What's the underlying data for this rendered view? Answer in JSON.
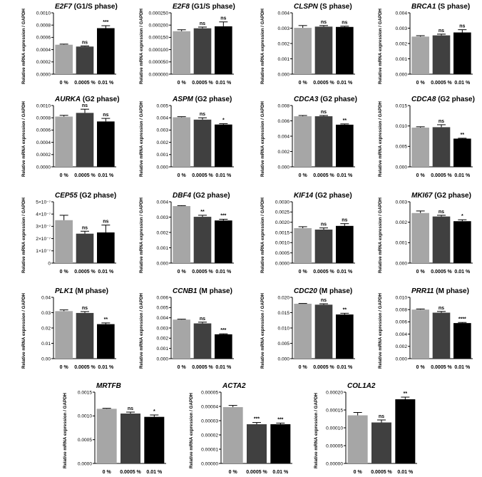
{
  "chart_data": [
    {
      "type": "bar",
      "gene": "E2F7",
      "phase": " (G1/S phase)",
      "categories": [
        "0 %",
        "0.0005 %",
        "0.01 %"
      ],
      "values": [
        0.00048,
        0.00045,
        0.00075
      ],
      "errors": [
        1e-05,
        1e-05,
        4e-05
      ],
      "significance": [
        "",
        "ns",
        "***"
      ],
      "ylabel": "Relative mRNA expression / GAPDH",
      "ylim": [
        0,
        0.001
      ],
      "yticks": [
        0,
        0.0002,
        0.0004,
        0.0006,
        0.0008,
        0.001
      ],
      "yticklabels": [
        "0.0000",
        "0.0002",
        "0.0004",
        "0.0006",
        "0.0008",
        "0.0010"
      ],
      "colors": [
        "#a6a6a6",
        "#404040",
        "#000000"
      ]
    },
    {
      "type": "bar",
      "gene": "E2F8",
      "phase": " (G1/S phase)",
      "categories": [
        "0 %",
        "0.0005 %",
        "0.01 %"
      ],
      "values": [
        0.000175,
        0.000187,
        0.000195
      ],
      "errors": [
        6e-06,
        5e-06,
        1.8e-05
      ],
      "significance": [
        "",
        "ns",
        "ns"
      ],
      "ylabel": "Relative mRNA expression / GAPDH",
      "ylim": [
        0,
        0.00025
      ],
      "yticks": [
        0,
        5e-05,
        0.0001,
        0.00015,
        0.0002,
        0.00025
      ],
      "yticklabels": [
        "0.000000",
        "0.000050",
        "0.000100",
        "0.000150",
        "0.000200",
        "0.000250"
      ],
      "colors": [
        "#a6a6a6",
        "#404040",
        "#000000"
      ]
    },
    {
      "type": "bar",
      "gene": "CLSPN",
      "phase": " (S phase)",
      "categories": [
        "0 %",
        "0.0005 %",
        "0.01 %"
      ],
      "values": [
        0.00302,
        0.0031,
        0.00308
      ],
      "errors": [
        0.00015,
        7e-05,
        5e-05
      ],
      "significance": [
        "",
        "ns",
        "ns"
      ],
      "ylabel": "Relative mRNA expression / GAPDH",
      "ylim": [
        0,
        0.004
      ],
      "yticks": [
        0,
        0.001,
        0.002,
        0.003,
        0.004
      ],
      "yticklabels": [
        "0.000",
        "0.001",
        "0.002",
        "0.003",
        "0.004"
      ],
      "colors": [
        "#a6a6a6",
        "#404040",
        "#000000"
      ]
    },
    {
      "type": "bar",
      "gene": "BRCA1",
      "phase": " (S phase)",
      "categories": [
        "0 %",
        "0.0005 %",
        "0.01 %"
      ],
      "values": [
        0.00245,
        0.00253,
        0.00272
      ],
      "errors": [
        6e-05,
        8e-05,
        0.00018
      ],
      "significance": [
        "",
        "ns",
        "ns"
      ],
      "ylabel": "Relative mRNA expression / GAPDH",
      "ylim": [
        0,
        0.004
      ],
      "yticks": [
        0,
        0.001,
        0.002,
        0.003,
        0.004
      ],
      "yticklabels": [
        "0.000",
        "0.001",
        "0.002",
        "0.003",
        "0.004"
      ],
      "colors": [
        "#a6a6a6",
        "#404040",
        "#000000"
      ]
    },
    {
      "type": "bar",
      "gene": "AURKA",
      "phase": " (G2 phase)",
      "categories": [
        "0 %",
        "0.0005 %",
        "0.01 %"
      ],
      "values": [
        0.00082,
        0.00088,
        0.00074
      ],
      "errors": [
        2e-05,
        6e-05,
        5e-05
      ],
      "significance": [
        "",
        "ns",
        "ns"
      ],
      "ylabel": "Relative mRNA expression / GAPDH",
      "ylim": [
        0,
        0.001
      ],
      "yticks": [
        0,
        0.0002,
        0.0004,
        0.0006,
        0.0008,
        0.001
      ],
      "yticklabels": [
        "0.0000",
        "0.0002",
        "0.0004",
        "0.0006",
        "0.0008",
        "0.0010"
      ],
      "colors": [
        "#a6a6a6",
        "#404040",
        "#000000"
      ]
    },
    {
      "type": "bar",
      "gene": "ASPM",
      "phase": " (G2 phase)",
      "categories": [
        "0 %",
        "0.0005 %",
        "0.01 %"
      ],
      "values": [
        0.00404,
        0.00385,
        0.00345
      ],
      "errors": [
        5e-05,
        0.00015,
        7e-05
      ],
      "significance": [
        "",
        "ns",
        "*"
      ],
      "ylabel": "Relative mRNA expression / GAPDH",
      "ylim": [
        0,
        0.005
      ],
      "yticks": [
        0,
        0.001,
        0.002,
        0.003,
        0.004,
        0.005
      ],
      "yticklabels": [
        "0.000",
        "0.001",
        "0.002",
        "0.003",
        "0.004",
        "0.005"
      ],
      "colors": [
        "#a6a6a6",
        "#404040",
        "#000000"
      ]
    },
    {
      "type": "bar",
      "gene": "CDCA3",
      "phase": " (G2 phase)",
      "categories": [
        "0 %",
        "0.0005 %",
        "0.01 %"
      ],
      "values": [
        0.0066,
        0.0066,
        0.0055
      ],
      "errors": [
        0.0001,
        0.0001,
        0.0001
      ],
      "significance": [
        "",
        "ns",
        "**"
      ],
      "ylabel": "Relative mRNA expression / GAPDH",
      "ylim": [
        0,
        0.008
      ],
      "yticks": [
        0,
        0.002,
        0.004,
        0.006,
        0.008
      ],
      "yticklabels": [
        "0.000",
        "0.002",
        "0.004",
        "0.006",
        "0.008"
      ],
      "colors": [
        "#a6a6a6",
        "#404040",
        "#000000"
      ]
    },
    {
      "type": "bar",
      "gene": "CDCA8",
      "phase": " (G2 phase)",
      "categories": [
        "0 %",
        "0.0005 %",
        "0.01 %"
      ],
      "values": [
        0.0096,
        0.0097,
        0.0069
      ],
      "errors": [
        0.0002,
        0.0006,
        0.0001
      ],
      "significance": [
        "",
        "ns",
        "**"
      ],
      "ylabel": "Relative mRNA expression / GAPDH",
      "ylim": [
        0,
        0.015
      ],
      "yticks": [
        0,
        0.005,
        0.01,
        0.015
      ],
      "yticklabels": [
        "0.000",
        "0.005",
        "0.010",
        "0.015"
      ],
      "colors": [
        "#a6a6a6",
        "#404040",
        "#000000"
      ]
    },
    {
      "type": "bar",
      "gene": "CEP55",
      "phase": " (G2 phase)",
      "categories": [
        "0 %",
        "0.0005 %",
        "0.01 %"
      ],
      "values": [
        3.5e-07,
        2.4e-07,
        2.5e-07
      ],
      "errors": [
        4e-08,
        2e-08,
        6e-08
      ],
      "significance": [
        "",
        "ns",
        "ns"
      ],
      "ylabel": "Relative mRNA expression / GAPDH",
      "ylim": [
        0,
        5e-07
      ],
      "yticks": [
        0,
        1e-07,
        2e-07,
        3e-07,
        4e-07,
        5e-07
      ],
      "yticklabels": [
        "0",
        "1×10⁻⁷",
        "2×10⁻⁷",
        "3×10⁻⁷",
        "4×10⁻⁷",
        "5×10⁻⁷"
      ],
      "colors": [
        "#a6a6a6",
        "#404040",
        "#000000"
      ]
    },
    {
      "type": "bar",
      "gene": "DBF4",
      "phase": " (G2 phase)",
      "categories": [
        "0 %",
        "0.0005 %",
        "0.01 %"
      ],
      "values": [
        0.00372,
        0.00302,
        0.00278
      ],
      "errors": [
        3e-05,
        0.0001,
        8e-05
      ],
      "significance": [
        "",
        "**",
        "***"
      ],
      "ylabel": "Relative mRNA expression / GAPDH",
      "ylim": [
        0,
        0.004
      ],
      "yticks": [
        0,
        0.001,
        0.002,
        0.003,
        0.004
      ],
      "yticklabels": [
        "0.000",
        "0.001",
        "0.002",
        "0.003",
        "0.004"
      ],
      "colors": [
        "#a6a6a6",
        "#404040",
        "#000000"
      ]
    },
    {
      "type": "bar",
      "gene": "KIF14",
      "phase": " (G2 phase)",
      "categories": [
        "0 %",
        "0.0005 %",
        "0.01 %"
      ],
      "values": [
        0.00171,
        0.00164,
        0.00182
      ],
      "errors": [
        7e-05,
        8e-05,
        0.00011
      ],
      "significance": [
        "",
        "ns",
        "ns"
      ],
      "ylabel": "Relative mRNA expression / GAPDH",
      "ylim": [
        0,
        0.003
      ],
      "yticks": [
        0,
        0.0005,
        0.001,
        0.0015,
        0.002,
        0.0025,
        0.003
      ],
      "yticklabels": [
        "0.0000",
        "0.0005",
        "0.0010",
        "0.0015",
        "0.0020",
        "0.0025",
        "0.0030"
      ],
      "colors": [
        "#a6a6a6",
        "#404040",
        "#000000"
      ]
    },
    {
      "type": "bar",
      "gene": "MKI67",
      "phase": " (G2 phase)",
      "categories": [
        "0 %",
        "0.0005 %",
        "0.01 %"
      ],
      "values": [
        0.00245,
        0.00228,
        0.00205
      ],
      "errors": [
        0.0001,
        6e-05,
        7e-05
      ],
      "significance": [
        "",
        "ns",
        "*"
      ],
      "ylabel": "Relative mRNA expression / GAPDH",
      "ylim": [
        0,
        0.003
      ],
      "yticks": [
        0,
        0.001,
        0.002,
        0.003
      ],
      "yticklabels": [
        "0.000",
        "0.001",
        "0.002",
        "0.003"
      ],
      "colors": [
        "#a6a6a6",
        "#404040",
        "#000000"
      ]
    },
    {
      "type": "bar",
      "gene": "PLK1",
      "phase": " (M phase)",
      "categories": [
        "0 %",
        "0.0005 %",
        "0.01 %"
      ],
      "values": [
        0.031,
        0.0298,
        0.0225
      ],
      "errors": [
        0.0008,
        0.0009,
        0.0008
      ],
      "significance": [
        "",
        "ns",
        "**"
      ],
      "ylabel": "Relative mRNA expression / GAPDH",
      "ylim": [
        0,
        0.04
      ],
      "yticks": [
        0,
        0.01,
        0.02,
        0.03,
        0.04
      ],
      "yticklabels": [
        "0.00",
        "0.01",
        "0.02",
        "0.03",
        "0.04"
      ],
      "colors": [
        "#a6a6a6",
        "#404040",
        "#000000"
      ]
    },
    {
      "type": "bar",
      "gene": "CCNB1",
      "phase": " (M phase)",
      "categories": [
        "0 %",
        "0.0005 %",
        "0.01 %"
      ],
      "values": [
        0.00382,
        0.00345,
        0.00238
      ],
      "errors": [
        4e-05,
        0.00012,
        5e-05
      ],
      "significance": [
        "",
        "ns",
        "***"
      ],
      "ylabel": "Relative mRNA expression / GAPDH",
      "ylim": [
        0,
        0.006
      ],
      "yticks": [
        0,
        0.001,
        0.002,
        0.003,
        0.004,
        0.005,
        0.006
      ],
      "yticklabels": [
        "0.000",
        "0.001",
        "0.002",
        "0.003",
        "0.004",
        "0.005",
        "0.006"
      ],
      "colors": [
        "#a6a6a6",
        "#404040",
        "#000000"
      ]
    },
    {
      "type": "bar",
      "gene": "CDC20",
      "phase": " (M phase)",
      "categories": [
        "0 %",
        "0.0005 %",
        "0.01 %"
      ],
      "values": [
        0.0179,
        0.0176,
        0.0144
      ],
      "errors": [
        0.0001,
        0.0003,
        0.0004
      ],
      "significance": [
        "",
        "ns",
        "**"
      ],
      "ylabel": "Relative mRNA expression / GAPDH",
      "ylim": [
        0,
        0.02
      ],
      "yticks": [
        0,
        0.005,
        0.01,
        0.015,
        0.02
      ],
      "yticklabels": [
        "0.000",
        "0.005",
        "0.010",
        "0.015",
        "0.020"
      ],
      "colors": [
        "#a6a6a6",
        "#404040",
        "#000000"
      ]
    },
    {
      "type": "bar",
      "gene": "PRR11",
      "phase": " (M phase)",
      "categories": [
        "0 %",
        "0.0005 %",
        "0.01 %"
      ],
      "values": [
        0.008,
        0.0075,
        0.0058
      ],
      "errors": [
        0.0001,
        0.0002,
        0.0001
      ],
      "significance": [
        "",
        "ns",
        "****"
      ],
      "ylabel": "Relative mRNA expression / GAPDH",
      "ylim": [
        0,
        0.01
      ],
      "yticks": [
        0,
        0.002,
        0.004,
        0.006,
        0.008,
        0.01
      ],
      "yticklabels": [
        "0.000",
        "0.002",
        "0.004",
        "0.006",
        "0.008",
        "0.010"
      ],
      "colors": [
        "#a6a6a6",
        "#404040",
        "#000000"
      ]
    },
    {
      "type": "bar",
      "gene": "MRTFB",
      "phase": "",
      "categories": [
        "0 %",
        "0.0005 %",
        "0.01 %"
      ],
      "values": [
        0.00115,
        0.00105,
        0.00098
      ],
      "errors": [
        1e-05,
        3e-05,
        4e-05
      ],
      "significance": [
        "",
        "ns",
        "*"
      ],
      "ylabel": "Relative mRNA expression / GAPDH",
      "ylim": [
        0,
        0.0015
      ],
      "yticks": [
        0,
        0.0005,
        0.001,
        0.0015
      ],
      "yticklabels": [
        "0.0000",
        "0.0005",
        "0.0010",
        "0.0015"
      ],
      "colors": [
        "#a6a6a6",
        "#404040",
        "#000000"
      ]
    },
    {
      "type": "bar",
      "gene": "ACTA2",
      "phase": "",
      "categories": [
        "0 %",
        "0.0005 %",
        "0.01 %"
      ],
      "values": [
        3.95e-05,
        2.75e-05,
        2.75e-05
      ],
      "errors": [
        1.2e-06,
        1.2e-06,
        8e-07
      ],
      "significance": [
        "",
        "***",
        "***"
      ],
      "ylabel": "Relative mRNA expression / GAPDH",
      "ylim": [
        0,
        5e-05
      ],
      "yticks": [
        0,
        1e-05,
        2e-05,
        3e-05,
        4e-05,
        5e-05
      ],
      "yticklabels": [
        "0.00000",
        "0.00001",
        "0.00002",
        "0.00003",
        "0.00004",
        "0.00005"
      ],
      "colors": [
        "#a6a6a6",
        "#404040",
        "#000000"
      ]
    },
    {
      "type": "bar",
      "gene": "COL1A2",
      "phase": "",
      "categories": [
        "0 %",
        "0.0005 %",
        "0.01 %"
      ],
      "values": [
        0.000135,
        0.000115,
        0.00018
      ],
      "errors": [
        8e-06,
        7e-06,
        6e-06
      ],
      "significance": [
        "",
        "ns",
        "**"
      ],
      "ylabel": "Relative mRNA expression / GAPDH",
      "ylim": [
        0,
        0.0002
      ],
      "yticks": [
        0,
        5e-05,
        0.0001,
        0.00015,
        0.0002
      ],
      "yticklabels": [
        "0.00000",
        "0.00005",
        "0.00010",
        "0.00015",
        "0.00020"
      ],
      "colors": [
        "#a6a6a6",
        "#404040",
        "#000000"
      ]
    }
  ]
}
